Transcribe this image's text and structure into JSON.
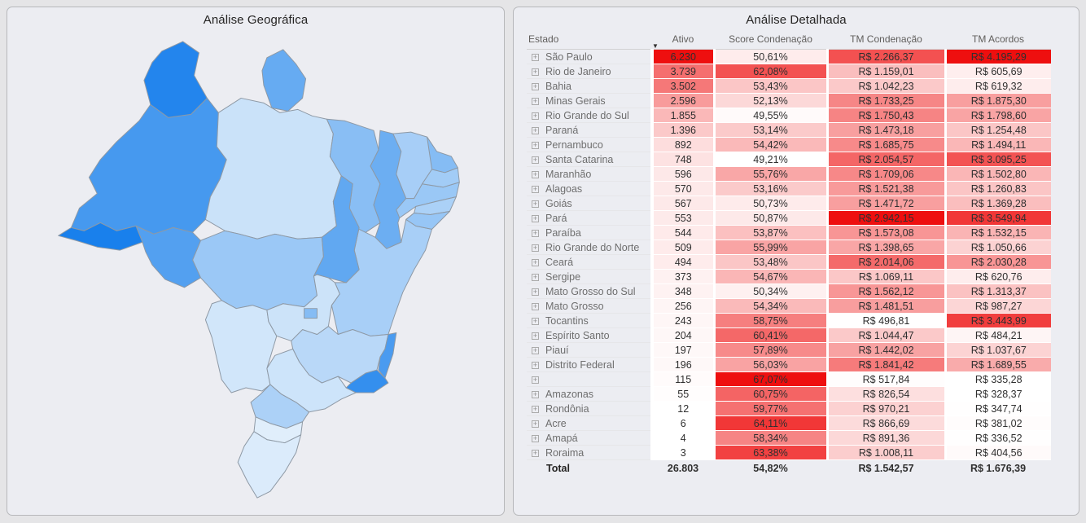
{
  "panels": {
    "map": {
      "title": "Análise Geográfica"
    },
    "table": {
      "title": "Análise Detalhada"
    }
  },
  "icons": {
    "sort_desc": "▼",
    "expand": "+"
  },
  "colors": {
    "page_background": "#e5e5e7",
    "panel_background": "#ecedf2",
    "panel_border": "#b7b8bb",
    "header_text": "#605e5c",
    "state_label_text": "#6e6e6e",
    "value_text": "#2f2f2f",
    "total_text": "#252423",
    "table_scale_min": "#ffffff",
    "table_scale_max": "#ee0f0f",
    "map_scale_min": "#e0eefb",
    "map_scale_max": "#1980ec",
    "map_border": "#8e99a5"
  },
  "chart_data": [
    {
      "type": "choropleth",
      "title": "Análise Geográfica",
      "region": "Brazil states",
      "color_metric": "Score Condenação (%)",
      "legend_position": "none",
      "scale": {
        "min_color": "#e0eefb",
        "max_color": "#1980ec"
      },
      "states": [
        {
          "id": "AC",
          "name": "Acre",
          "value": 64.11
        },
        {
          "id": "AL",
          "name": "Alagoas",
          "value": 53.16
        },
        {
          "id": "AP",
          "name": "Amapá",
          "value": 58.34
        },
        {
          "id": "AM",
          "name": "Amazonas",
          "value": 60.75
        },
        {
          "id": "BA",
          "name": "Bahia",
          "value": 53.43
        },
        {
          "id": "CE",
          "name": "Ceará",
          "value": 53.48
        },
        {
          "id": "DF",
          "name": "Distrito Federal",
          "value": 56.03
        },
        {
          "id": "ES",
          "name": "Espírito Santo",
          "value": 60.41
        },
        {
          "id": "GO",
          "name": "Goiás",
          "value": 50.73
        },
        {
          "id": "MA",
          "name": "Maranhão",
          "value": 55.76
        },
        {
          "id": "MT",
          "name": "Mato Grosso",
          "value": 54.34
        },
        {
          "id": "MS",
          "name": "Mato Grosso do Sul",
          "value": 50.34
        },
        {
          "id": "MG",
          "name": "Minas Gerais",
          "value": 52.13
        },
        {
          "id": "PA",
          "name": "Pará",
          "value": 50.87
        },
        {
          "id": "PB",
          "name": "Paraíba",
          "value": 53.87
        },
        {
          "id": "PR",
          "name": "Paraná",
          "value": 53.14
        },
        {
          "id": "PE",
          "name": "Pernambuco",
          "value": 54.42
        },
        {
          "id": "PI",
          "name": "Piauí",
          "value": 57.89
        },
        {
          "id": "RJ",
          "name": "Rio de Janeiro",
          "value": 62.08
        },
        {
          "id": "RN",
          "name": "Rio Grande do Norte",
          "value": 55.99
        },
        {
          "id": "RS",
          "name": "Rio Grande do Sul",
          "value": 49.55
        },
        {
          "id": "RO",
          "name": "Rondônia",
          "value": 59.77
        },
        {
          "id": "RR",
          "name": "Roraima",
          "value": 63.38
        },
        {
          "id": "SC",
          "name": "Santa Catarina",
          "value": 49.21
        },
        {
          "id": "SP",
          "name": "São Paulo",
          "value": 50.61
        },
        {
          "id": "SE",
          "name": "Sergipe",
          "value": 54.67
        },
        {
          "id": "TO",
          "name": "Tocantins",
          "value": 58.75
        }
      ]
    },
    {
      "type": "table",
      "title": "Análise Detalhada",
      "columns": [
        "Estado",
        "Ativo",
        "Score Condenação",
        "TM Condenação",
        "TM Acordos"
      ],
      "sort": {
        "column": "Ativo",
        "direction": "desc"
      },
      "conditional_format": {
        "columns": [
          "Ativo",
          "Score Condenação",
          "TM Condenação",
          "TM Acordos"
        ],
        "min_color": "#ffffff",
        "max_color": "#ee0f0f"
      },
      "rows": [
        {
          "estado": "São Paulo",
          "ativo": "6.230",
          "ativo_value": 6230,
          "score": "50,61%",
          "score_value": 50.61,
          "tm_condenacao": "R$ 2.266,37",
          "tm_condenacao_value": 2266.37,
          "tm_acordos": "R$ 4.195,29",
          "tm_acordos_value": 4195.29
        },
        {
          "estado": "Rio de Janeiro",
          "ativo": "3.739",
          "ativo_value": 3739,
          "score": "62,08%",
          "score_value": 62.08,
          "tm_condenacao": "R$ 1.159,01",
          "tm_condenacao_value": 1159.01,
          "tm_acordos": "R$ 605,69",
          "tm_acordos_value": 605.69
        },
        {
          "estado": "Bahia",
          "ativo": "3.502",
          "ativo_value": 3502,
          "score": "53,43%",
          "score_value": 53.43,
          "tm_condenacao": "R$ 1.042,23",
          "tm_condenacao_value": 1042.23,
          "tm_acordos": "R$ 619,32",
          "tm_acordos_value": 619.32
        },
        {
          "estado": "Minas Gerais",
          "ativo": "2.596",
          "ativo_value": 2596,
          "score": "52,13%",
          "score_value": 52.13,
          "tm_condenacao": "R$ 1.733,25",
          "tm_condenacao_value": 1733.25,
          "tm_acordos": "R$ 1.875,30",
          "tm_acordos_value": 1875.3
        },
        {
          "estado": "Rio Grande do Sul",
          "ativo": "1.855",
          "ativo_value": 1855,
          "score": "49,55%",
          "score_value": 49.55,
          "tm_condenacao": "R$ 1.750,43",
          "tm_condenacao_value": 1750.43,
          "tm_acordos": "R$ 1.798,60",
          "tm_acordos_value": 1798.6
        },
        {
          "estado": "Paraná",
          "ativo": "1.396",
          "ativo_value": 1396,
          "score": "53,14%",
          "score_value": 53.14,
          "tm_condenacao": "R$ 1.473,18",
          "tm_condenacao_value": 1473.18,
          "tm_acordos": "R$ 1.254,48",
          "tm_acordos_value": 1254.48
        },
        {
          "estado": "Pernambuco",
          "ativo": "892",
          "ativo_value": 892,
          "score": "54,42%",
          "score_value": 54.42,
          "tm_condenacao": "R$ 1.685,75",
          "tm_condenacao_value": 1685.75,
          "tm_acordos": "R$ 1.494,11",
          "tm_acordos_value": 1494.11
        },
        {
          "estado": "Santa Catarina",
          "ativo": "748",
          "ativo_value": 748,
          "score": "49,21%",
          "score_value": 49.21,
          "tm_condenacao": "R$ 2.054,57",
          "tm_condenacao_value": 2054.57,
          "tm_acordos": "R$ 3.095,25",
          "tm_acordos_value": 3095.25
        },
        {
          "estado": "Maranhão",
          "ativo": "596",
          "ativo_value": 596,
          "score": "55,76%",
          "score_value": 55.76,
          "tm_condenacao": "R$ 1.709,06",
          "tm_condenacao_value": 1709.06,
          "tm_acordos": "R$ 1.502,80",
          "tm_acordos_value": 1502.8
        },
        {
          "estado": "Alagoas",
          "ativo": "570",
          "ativo_value": 570,
          "score": "53,16%",
          "score_value": 53.16,
          "tm_condenacao": "R$ 1.521,38",
          "tm_condenacao_value": 1521.38,
          "tm_acordos": "R$ 1.260,83",
          "tm_acordos_value": 1260.83
        },
        {
          "estado": "Goiás",
          "ativo": "567",
          "ativo_value": 567,
          "score": "50,73%",
          "score_value": 50.73,
          "tm_condenacao": "R$ 1.471,72",
          "tm_condenacao_value": 1471.72,
          "tm_acordos": "R$ 1.369,28",
          "tm_acordos_value": 1369.28
        },
        {
          "estado": "Pará",
          "ativo": "553",
          "ativo_value": 553,
          "score": "50,87%",
          "score_value": 50.87,
          "tm_condenacao": "R$ 2.942,15",
          "tm_condenacao_value": 2942.15,
          "tm_acordos": "R$ 3.549,94",
          "tm_acordos_value": 3549.94
        },
        {
          "estado": "Paraíba",
          "ativo": "544",
          "ativo_value": 544,
          "score": "53,87%",
          "score_value": 53.87,
          "tm_condenacao": "R$ 1.573,08",
          "tm_condenacao_value": 1573.08,
          "tm_acordos": "R$ 1.532,15",
          "tm_acordos_value": 1532.15
        },
        {
          "estado": "Rio Grande do Norte",
          "ativo": "509",
          "ativo_value": 509,
          "score": "55,99%",
          "score_value": 55.99,
          "tm_condenacao": "R$ 1.398,65",
          "tm_condenacao_value": 1398.65,
          "tm_acordos": "R$ 1.050,66",
          "tm_acordos_value": 1050.66
        },
        {
          "estado": "Ceará",
          "ativo": "494",
          "ativo_value": 494,
          "score": "53,48%",
          "score_value": 53.48,
          "tm_condenacao": "R$ 2.014,06",
          "tm_condenacao_value": 2014.06,
          "tm_acordos": "R$ 2.030,28",
          "tm_acordos_value": 2030.28
        },
        {
          "estado": "Sergipe",
          "ativo": "373",
          "ativo_value": 373,
          "score": "54,67%",
          "score_value": 54.67,
          "tm_condenacao": "R$ 1.069,11",
          "tm_condenacao_value": 1069.11,
          "tm_acordos": "R$ 620,76",
          "tm_acordos_value": 620.76
        },
        {
          "estado": "Mato Grosso do Sul",
          "ativo": "348",
          "ativo_value": 348,
          "score": "50,34%",
          "score_value": 50.34,
          "tm_condenacao": "R$ 1.562,12",
          "tm_condenacao_value": 1562.12,
          "tm_acordos": "R$ 1.313,37",
          "tm_acordos_value": 1313.37
        },
        {
          "estado": "Mato Grosso",
          "ativo": "256",
          "ativo_value": 256,
          "score": "54,34%",
          "score_value": 54.34,
          "tm_condenacao": "R$ 1.481,51",
          "tm_condenacao_value": 1481.51,
          "tm_acordos": "R$ 987,27",
          "tm_acordos_value": 987.27
        },
        {
          "estado": "Tocantins",
          "ativo": "243",
          "ativo_value": 243,
          "score": "58,75%",
          "score_value": 58.75,
          "tm_condenacao": "R$ 496,81",
          "tm_condenacao_value": 496.81,
          "tm_acordos": "R$ 3.443,99",
          "tm_acordos_value": 3443.99
        },
        {
          "estado": "Espírito Santo",
          "ativo": "204",
          "ativo_value": 204,
          "score": "60,41%",
          "score_value": 60.41,
          "tm_condenacao": "R$ 1.044,47",
          "tm_condenacao_value": 1044.47,
          "tm_acordos": "R$ 484,21",
          "tm_acordos_value": 484.21
        },
        {
          "estado": "Piauí",
          "ativo": "197",
          "ativo_value": 197,
          "score": "57,89%",
          "score_value": 57.89,
          "tm_condenacao": "R$ 1.442,02",
          "tm_condenacao_value": 1442.02,
          "tm_acordos": "R$ 1.037,67",
          "tm_acordos_value": 1037.67
        },
        {
          "estado": "Distrito Federal",
          "ativo": "196",
          "ativo_value": 196,
          "score": "56,03%",
          "score_value": 56.03,
          "tm_condenacao": "R$ 1.841,42",
          "tm_condenacao_value": 1841.42,
          "tm_acordos": "R$ 1.689,55",
          "tm_acordos_value": 1689.55
        },
        {
          "estado": "",
          "ativo": "115",
          "ativo_value": 115,
          "score": "67,07%",
          "score_value": 67.07,
          "tm_condenacao": "R$ 517,84",
          "tm_condenacao_value": 517.84,
          "tm_acordos": "R$ 335,28",
          "tm_acordos_value": 335.28
        },
        {
          "estado": "Amazonas",
          "ativo": "55",
          "ativo_value": 55,
          "score": "60,75%",
          "score_value": 60.75,
          "tm_condenacao": "R$ 826,54",
          "tm_condenacao_value": 826.54,
          "tm_acordos": "R$ 328,37",
          "tm_acordos_value": 328.37
        },
        {
          "estado": "Rondônia",
          "ativo": "12",
          "ativo_value": 12,
          "score": "59,77%",
          "score_value": 59.77,
          "tm_condenacao": "R$ 970,21",
          "tm_condenacao_value": 970.21,
          "tm_acordos": "R$ 347,74",
          "tm_acordos_value": 347.74
        },
        {
          "estado": "Acre",
          "ativo": "6",
          "ativo_value": 6,
          "score": "64,11%",
          "score_value": 64.11,
          "tm_condenacao": "R$ 866,69",
          "tm_condenacao_value": 866.69,
          "tm_acordos": "R$ 381,02",
          "tm_acordos_value": 381.02
        },
        {
          "estado": "Amapá",
          "ativo": "4",
          "ativo_value": 4,
          "score": "58,34%",
          "score_value": 58.34,
          "tm_condenacao": "R$ 891,36",
          "tm_condenacao_value": 891.36,
          "tm_acordos": "R$ 336,52",
          "tm_acordos_value": 336.52
        },
        {
          "estado": "Roraima",
          "ativo": "3",
          "ativo_value": 3,
          "score": "63,38%",
          "score_value": 63.38,
          "tm_condenacao": "R$ 1.008,11",
          "tm_condenacao_value": 1008.11,
          "tm_acordos": "R$ 404,56",
          "tm_acordos_value": 404.56
        }
      ],
      "total": {
        "estado": "Total",
        "ativo": "26.803",
        "score": "54,82%",
        "tm_condenacao": "R$ 1.542,57",
        "tm_acordos": "R$ 1.676,39"
      }
    }
  ]
}
